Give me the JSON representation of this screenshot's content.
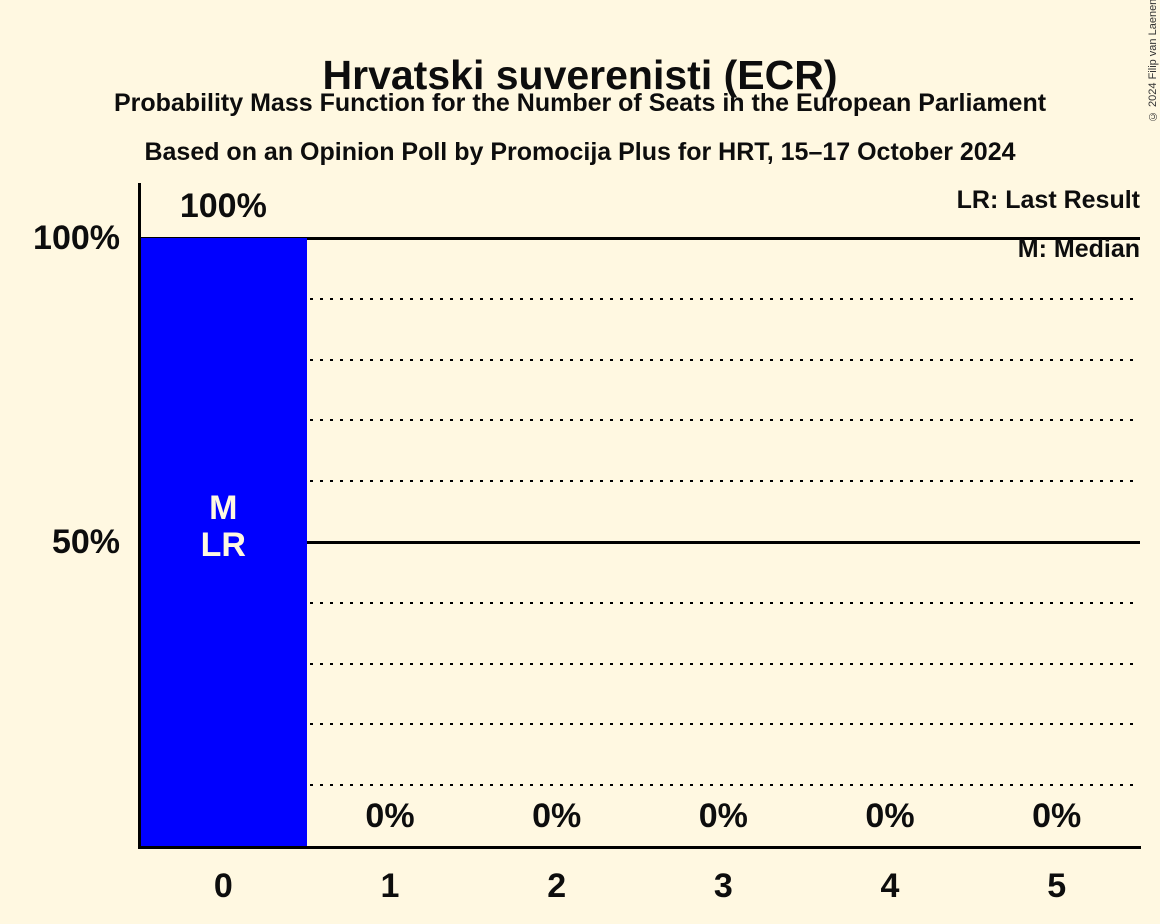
{
  "copyright": "© 2024 Filip van Laenen",
  "colors": {
    "background": "#FFF8E1",
    "text": "#0D0D0D",
    "axis_line": "#000000",
    "bar": "#0000FF",
    "bar_annotation_text": "#FFF8E1"
  },
  "chart_data": {
    "type": "bar",
    "title": "Hrvatski suverenisti (ECR)",
    "subtitle": "Probability Mass Function for the Number of Seats in the European Parliament",
    "source_line": "Based on an Opinion Poll by Promocija Plus for HRT, 15–17 October 2024",
    "xlabel": "",
    "ylabel": "",
    "categories": [
      "0",
      "1",
      "2",
      "3",
      "4",
      "5"
    ],
    "values": [
      100,
      0,
      0,
      0,
      0,
      0
    ],
    "value_labels": [
      "100%",
      "0%",
      "0%",
      "0%",
      "0%",
      "0%"
    ],
    "ylim": [
      0,
      100
    ],
    "grid_step": 10,
    "solid_gridlines": [
      50,
      100
    ],
    "y_ticks": [
      {
        "value": 100,
        "label": "100%"
      },
      {
        "value": 50,
        "label": "50%"
      }
    ],
    "median_seat": 0,
    "last_result_seat": 0,
    "annotations": {
      "median": "M",
      "last_result": "LR"
    },
    "legend": {
      "lr": "LR: Last Result",
      "m": "M: Median"
    },
    "bar_color": "#0000FF"
  }
}
